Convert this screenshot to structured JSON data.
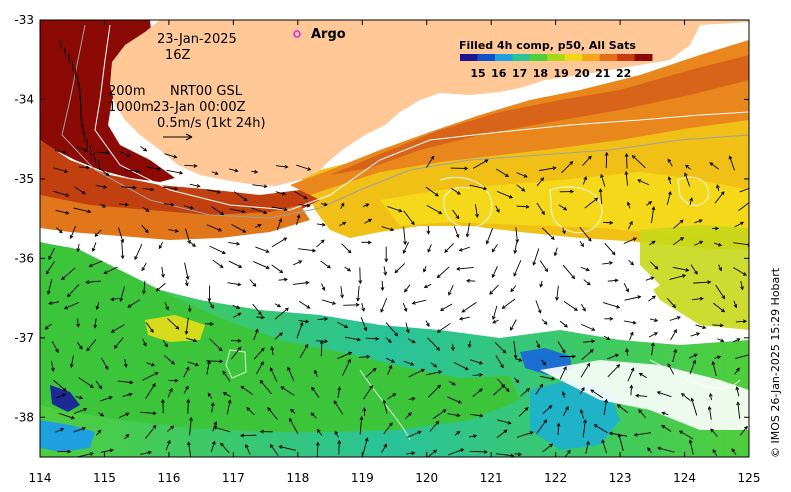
{
  "map": {
    "header": {
      "date": "23-Jan-2025",
      "hour": "16Z",
      "argo_label": "Argo",
      "depth_200": "200m",
      "depth_1000": "1000m",
      "source": "NRT00 GSL",
      "source_time": "23-Jan 00:00Z",
      "scale_note": "0.5m/s (1kt 24h)"
    },
    "legend": {
      "title": "Filled 4h comp, p50, All Sats",
      "ticks": [
        "15",
        "16",
        "17",
        "18",
        "19",
        "20",
        "21",
        "22"
      ],
      "colors": [
        "#1d1496",
        "#0a53c8",
        "#1ea0e0",
        "#29c39a",
        "#4fce3a",
        "#a6d815",
        "#f0d817",
        "#f3a81c",
        "#e6701a",
        "#c83a12",
        "#8b0a05"
      ]
    },
    "credit": "© IMOS 26-Jan-2025 15:29 Hobart",
    "axes": {
      "x_ticks": [
        "114",
        "115",
        "116",
        "117",
        "118",
        "119",
        "120",
        "121",
        "122",
        "123",
        "124",
        "125"
      ],
      "y_ticks": [
        "-33",
        "-34",
        "-35",
        "-36",
        "-37",
        "-38"
      ],
      "x_range": [
        114,
        125
      ],
      "y_range": [
        -38.5,
        -33
      ]
    },
    "colors": {
      "land": "#ffc896",
      "no_data": "#ffffff"
    }
  }
}
